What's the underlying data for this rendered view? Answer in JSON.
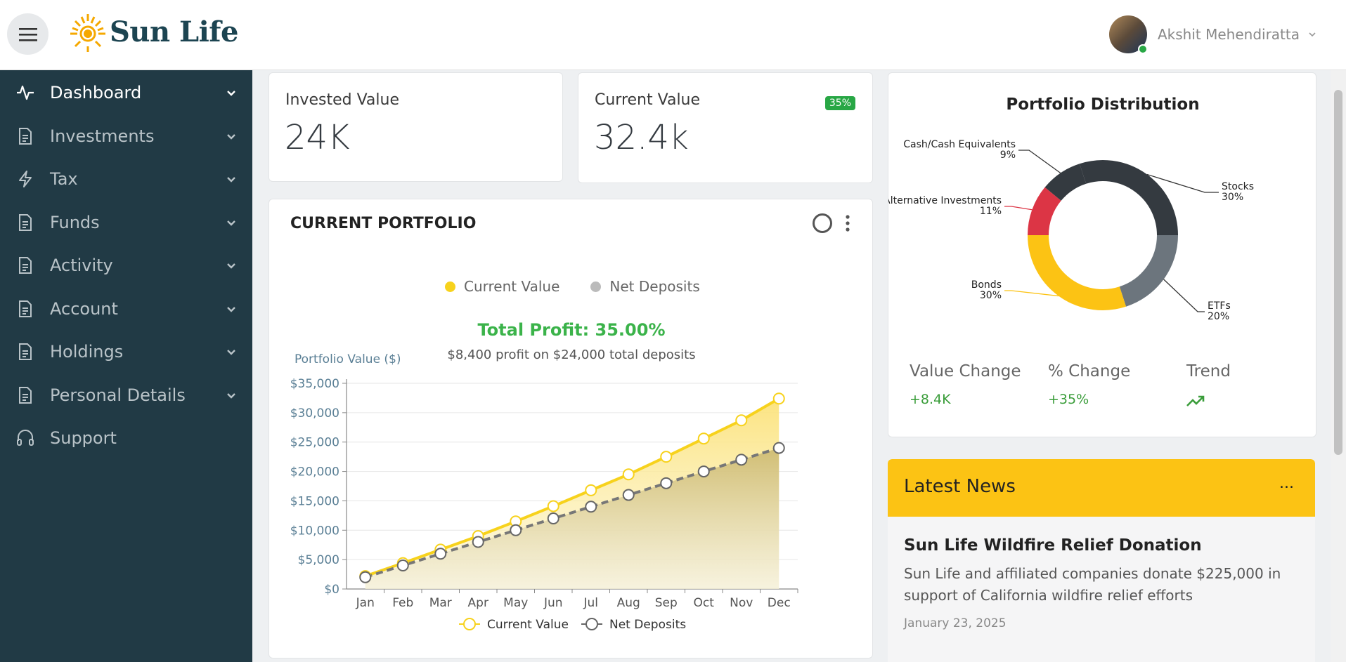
{
  "brand": {
    "name": "Sun Life"
  },
  "user": {
    "name": "Akshit Mehendiratta"
  },
  "sidebar": {
    "items": [
      {
        "label": "Dashboard",
        "icon": "activity-icon"
      },
      {
        "label": "Investments",
        "icon": "document-icon"
      },
      {
        "label": "Tax",
        "icon": "lightning-icon"
      },
      {
        "label": "Funds",
        "icon": "document-icon"
      },
      {
        "label": "Activity",
        "icon": "document-icon"
      },
      {
        "label": "Account",
        "icon": "document-icon"
      },
      {
        "label": "Holdings",
        "icon": "document-icon"
      },
      {
        "label": "Personal Details",
        "icon": "document-icon"
      },
      {
        "label": "Support",
        "icon": "headset-icon"
      }
    ]
  },
  "stats": {
    "invested": {
      "label": "Invested Value",
      "value": "24K"
    },
    "current": {
      "label": "Current Value",
      "value": "32.4k",
      "badge": "35%"
    }
  },
  "portfolio": {
    "title": "CURRENT PORTFOLIO",
    "legend": [
      "Current Value",
      "Net Deposits"
    ],
    "profit_title": "Total Profit: 35.00%",
    "profit_subtitle": "$8,400 profit on $24,000 total deposits",
    "y_axis_title": "Portfolio Value ($)"
  },
  "chart_data": {
    "type": "area",
    "x": [
      "Jan",
      "Feb",
      "Mar",
      "Apr",
      "May",
      "Jun",
      "Jul",
      "Aug",
      "Sep",
      "Oct",
      "Nov",
      "Dec"
    ],
    "series": [
      {
        "name": "Current Value",
        "color": "#f7d21c",
        "values": [
          2200,
          4400,
          6700,
          9000,
          11500,
          14100,
          16800,
          19500,
          22500,
          25600,
          28700,
          32400
        ]
      },
      {
        "name": "Net Deposits",
        "color": "#777777",
        "values": [
          2000,
          4000,
          6000,
          8000,
          10000,
          12000,
          14000,
          16000,
          18000,
          20000,
          22000,
          24000
        ]
      }
    ],
    "ylabel": "Portfolio Value ($)",
    "ylim": [
      0,
      35000
    ],
    "y_ticks": [
      "$0",
      "$5,000",
      "$10,000",
      "$15,000",
      "$20,000",
      "$25,000",
      "$30,000",
      "$35,000"
    ],
    "grid": true,
    "legend": "bottom"
  },
  "distribution": {
    "title": "Portfolio Distribution",
    "slices": [
      {
        "label": "Stocks",
        "pct": "30%",
        "value": 30,
        "color": "#343a40"
      },
      {
        "label": "ETFs",
        "pct": "20%",
        "value": 20,
        "color": "#6c757d"
      },
      {
        "label": "Bonds",
        "pct": "30%",
        "value": 30,
        "color": "#fcc314"
      },
      {
        "label": "Alternative Investments",
        "pct": "11%",
        "value": 11,
        "color": "#dc3545"
      },
      {
        "label": "Cash/Cash Equivalents",
        "pct": "9%",
        "value": 9,
        "color": "#343a40"
      }
    ],
    "metrics": {
      "value_change_label": "Value Change",
      "value_change": "+8.4K",
      "pct_change_label": "% Change",
      "pct_change": "+35%",
      "trend_label": "Trend"
    }
  },
  "news": {
    "header": "Latest News",
    "more": "...",
    "title": "Sun Life Wildfire Relief Donation",
    "body": "Sun Life and affiliated companies donate $225,000 in support of California wildfire relief efforts",
    "date": "January 23, 2025"
  }
}
